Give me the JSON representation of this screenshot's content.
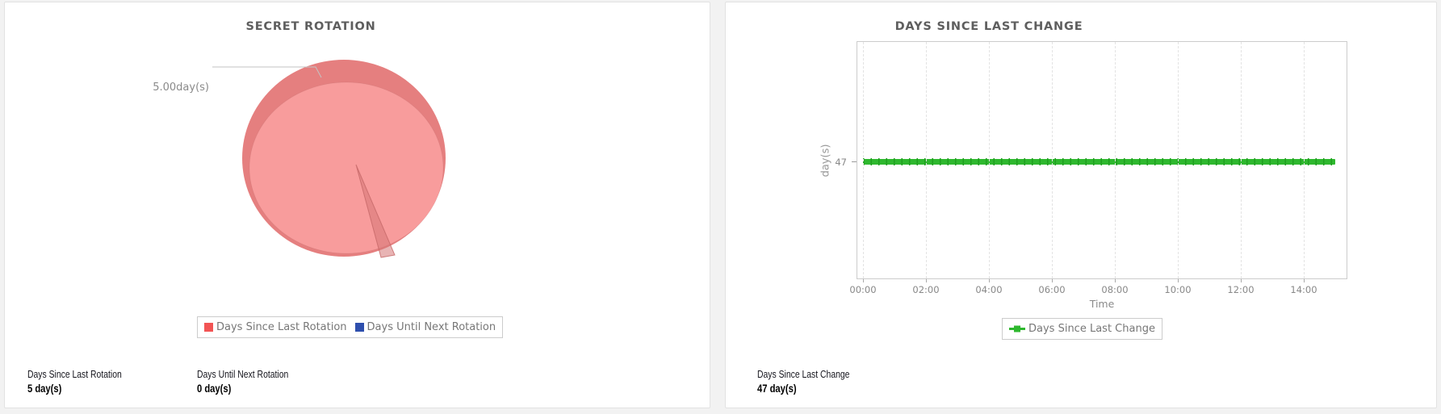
{
  "chart_data": [
    {
      "type": "pie",
      "title": "SECRET ROTATION",
      "style": "3d",
      "legend_position": "bottom",
      "slices": [
        {
          "label": "Days Since Last Rotation",
          "value": 5.0,
          "display": "5.00day(s)",
          "color": "#f25454"
        },
        {
          "label": "Days Until Next Rotation",
          "value": 0,
          "color": "#2e4fad"
        }
      ],
      "pie_colors": {
        "top": "#f89c9c",
        "side": "#e57f7f",
        "sliver_fill": "rgba(214,118,118,0.55)",
        "sliver_stroke": "rgba(198,104,104,0.8)"
      },
      "footer_stats": [
        {
          "label": "Days Since Last Rotation",
          "value": "5 day(s)"
        },
        {
          "label": "Days Until Next Rotation",
          "value": "0 day(s)"
        }
      ]
    },
    {
      "type": "line",
      "title": "DAYS SINCE LAST CHANGE",
      "xlabel": "Time",
      "ylabel": "day(s)",
      "x_ticks": [
        "00:00",
        "02:00",
        "04:00",
        "06:00",
        "08:00",
        "10:00",
        "12:00",
        "14:00"
      ],
      "y_ticks": [
        47
      ],
      "grid": "vertical-dashed",
      "legend_position": "bottom",
      "series": [
        {
          "name": "Days Since Last Change",
          "color": "#2eb82e",
          "marker_border_color": "#1f9e1f",
          "constant_value": 47,
          "x_start": "00:00",
          "x_end": "15:00"
        }
      ],
      "footer_stats": [
        {
          "label": "Days Since Last Change",
          "value": "47 day(s)"
        }
      ]
    }
  ]
}
